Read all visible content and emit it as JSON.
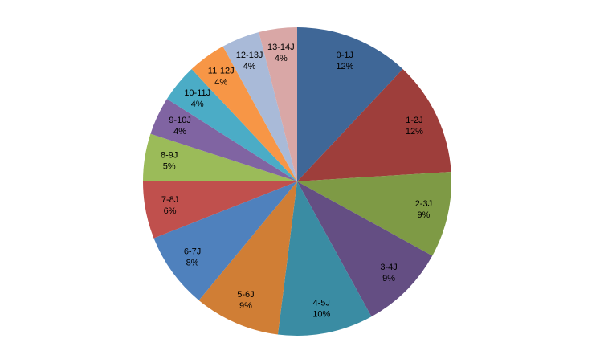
{
  "chart_data": {
    "type": "pie",
    "categories": [
      "0-1J",
      "1-2J",
      "2-3J",
      "3-4J",
      "4-5J",
      "5-6J",
      "6-7J",
      "7-8J",
      "8-9J",
      "9-10J",
      "10-11J",
      "11-12J",
      "12-13J",
      "13-14J"
    ],
    "values": [
      12,
      12,
      9,
      9,
      10,
      9,
      8,
      6,
      5,
      4,
      4,
      4,
      4,
      4
    ],
    "value_labels": [
      "12%",
      "12%",
      "9%",
      "9%",
      "10%",
      "9%",
      "8%",
      "6%",
      "5%",
      "4%",
      "4%",
      "4%",
      "4%",
      "4%"
    ],
    "colors": [
      "#3F6797",
      "#9E3E3B",
      "#7E9A45",
      "#644E83",
      "#3A8CA3",
      "#D07E35",
      "#4F81BD",
      "#C0504D",
      "#9BBB59",
      "#8064A2",
      "#4BACC6",
      "#F79646",
      "#A9BAD8",
      "#D9A7A6"
    ]
  }
}
